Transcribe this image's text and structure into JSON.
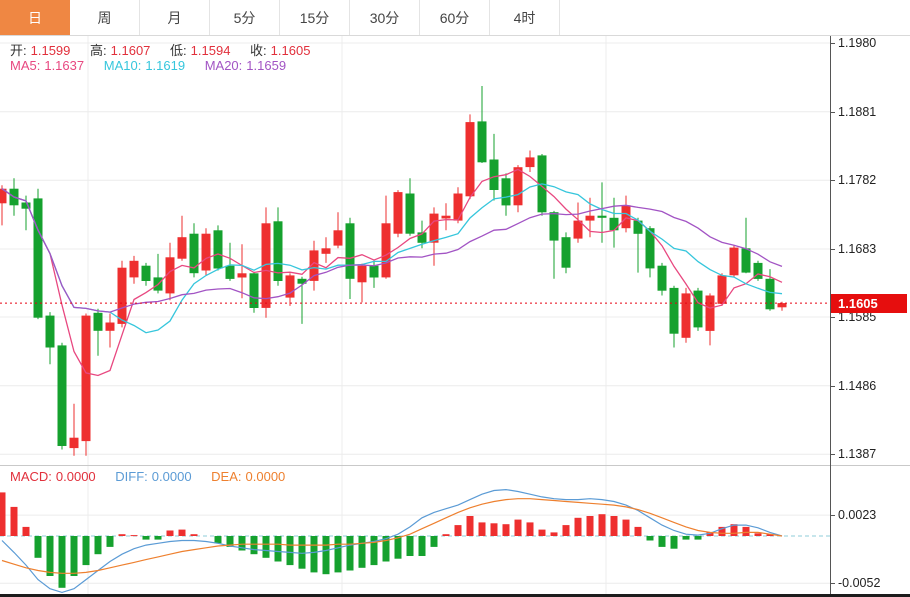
{
  "tabs": {
    "items": [
      {
        "label": "日",
        "name": "day",
        "active": true
      },
      {
        "label": "周",
        "name": "week",
        "active": false
      },
      {
        "label": "月",
        "name": "month",
        "active": false
      },
      {
        "label": "5分",
        "name": "5min",
        "active": false
      },
      {
        "label": "15分",
        "name": "15min",
        "active": false
      },
      {
        "label": "30分",
        "name": "30min",
        "active": false
      },
      {
        "label": "60分",
        "name": "60min",
        "active": false
      },
      {
        "label": "4时",
        "name": "4hour",
        "active": false
      }
    ]
  },
  "ohlc_bar": {
    "open_label": "开:",
    "open": "1.1599",
    "high_label": "高:",
    "high": "1.1607",
    "low_label": "低:",
    "low": "1.1594",
    "close_label": "收:",
    "close": "1.1605"
  },
  "ma_legend": {
    "ma5_label": "MA5:",
    "ma5": "1.1637",
    "ma10_label": "MA10:",
    "ma10": "1.1619",
    "ma20_label": "MA20:",
    "ma20": "1.1659"
  },
  "macd_legend": {
    "macd_label": "MACD:",
    "macd": "0.0000",
    "diff_label": "DIFF:",
    "diff": "0.0000",
    "dea_label": "DEA:",
    "dea": "0.0000"
  },
  "price_axis": {
    "ticks": [
      "1.1980",
      "1.1881",
      "1.1782",
      "1.1683",
      "1.1585",
      "1.1486",
      "1.1387"
    ],
    "last_price": "1.1605"
  },
  "macd_axis": {
    "ticks": [
      "0.0023",
      "-0.0052"
    ]
  },
  "colors": {
    "tab_active_bg": "#ef8743",
    "up": "#ee2f2f",
    "down": "#15a12e",
    "ma5": "#e84880",
    "ma10": "#36c6dc",
    "ma20": "#a254c4",
    "diff": "#5b9bd5",
    "dea": "#ee802f",
    "price_line": "#e60012",
    "badge_bg": "#e60e0e",
    "value_red": "#e1303c",
    "grid": "#ececec",
    "macd_zero_line": "#8fccd8"
  },
  "chart_data": [
    {
      "type": "candlestick",
      "title": "",
      "xlabel": "",
      "ylabel": "",
      "grid": true,
      "legend": [
        "MA5",
        "MA10",
        "MA20"
      ],
      "ylim": [
        1.1372,
        1.199
      ],
      "yticks": [
        1.198,
        1.1881,
        1.1782,
        1.1683,
        1.1585,
        1.1486,
        1.1387
      ],
      "last_price": 1.1605,
      "overlays": [
        {
          "name": "MA5",
          "period": 5,
          "color_key": "ma5",
          "last_value": 1.1637
        },
        {
          "name": "MA10",
          "period": 10,
          "color_key": "ma10",
          "last_value": 1.1619
        },
        {
          "name": "MA20",
          "period": 20,
          "color_key": "ma20",
          "last_value": 1.1659
        }
      ],
      "candles_format": [
        "open",
        "high",
        "low",
        "close"
      ],
      "candles": [
        [
          1.1749,
          1.1775,
          1.1717,
          1.177
        ],
        [
          1.177,
          1.1785,
          1.1731,
          1.1746
        ],
        [
          1.175,
          1.176,
          1.171,
          1.1741
        ],
        [
          1.1756,
          1.177,
          1.1582,
          1.1584
        ],
        [
          1.1587,
          1.1592,
          1.1517,
          1.1541
        ],
        [
          1.1544,
          1.1548,
          1.1394,
          1.1399
        ],
        [
          1.1396,
          1.146,
          1.1385,
          1.1411
        ],
        [
          1.1406,
          1.159,
          1.1385,
          1.1587
        ],
        [
          1.1591,
          1.1597,
          1.1529,
          1.1565
        ],
        [
          1.1565,
          1.159,
          1.1541,
          1.1577
        ],
        [
          1.1575,
          1.1666,
          1.157,
          1.1656
        ],
        [
          1.1642,
          1.1673,
          1.1633,
          1.1666
        ],
        [
          1.1659,
          1.1663,
          1.163,
          1.1637
        ],
        [
          1.1642,
          1.1676,
          1.1619,
          1.1623
        ],
        [
          1.1619,
          1.1692,
          1.1609,
          1.1671
        ],
        [
          1.1669,
          1.1731,
          1.1666,
          1.17
        ],
        [
          1.1705,
          1.172,
          1.1642,
          1.1648
        ],
        [
          1.1652,
          1.1713,
          1.1645,
          1.1705
        ],
        [
          1.171,
          1.1717,
          1.1652,
          1.1655
        ],
        [
          1.1659,
          1.1692,
          1.1637,
          1.164
        ],
        [
          1.1642,
          1.169,
          1.1612,
          1.1648
        ],
        [
          1.1648,
          1.165,
          1.1591,
          1.1598
        ],
        [
          1.1598,
          1.1743,
          1.1584,
          1.172
        ],
        [
          1.1723,
          1.1743,
          1.163,
          1.1637
        ],
        [
          1.1613,
          1.1648,
          1.1601,
          1.1645
        ],
        [
          1.164,
          1.1643,
          1.1575,
          1.1633
        ],
        [
          1.1637,
          1.1695,
          1.1623,
          1.1681
        ],
        [
          1.1676,
          1.17,
          1.1663,
          1.1684
        ],
        [
          1.1688,
          1.1736,
          1.1684,
          1.171
        ],
        [
          1.172,
          1.1728,
          1.1611,
          1.164
        ],
        [
          1.1635,
          1.1662,
          1.1606,
          1.1659
        ],
        [
          1.1659,
          1.1666,
          1.1627,
          1.1642
        ],
        [
          1.1642,
          1.176,
          1.164,
          1.172
        ],
        [
          1.1705,
          1.1768,
          1.17,
          1.1765
        ],
        [
          1.1763,
          1.1785,
          1.1702,
          1.1705
        ],
        [
          1.1707,
          1.1724,
          1.1684,
          1.1692
        ],
        [
          1.1692,
          1.1743,
          1.1659,
          1.1734
        ],
        [
          1.1727,
          1.1749,
          1.171,
          1.1731
        ],
        [
          1.1724,
          1.1772,
          1.172,
          1.1763
        ],
        [
          1.1759,
          1.1877,
          1.1755,
          1.1866
        ],
        [
          1.1867,
          1.1918,
          1.1807,
          1.1808
        ],
        [
          1.1812,
          1.1849,
          1.1753,
          1.1768
        ],
        [
          1.1785,
          1.1792,
          1.1731,
          1.1746
        ],
        [
          1.1746,
          1.1804,
          1.1736,
          1.1801
        ],
        [
          1.1801,
          1.1825,
          1.1794,
          1.1815
        ],
        [
          1.1818,
          1.182,
          1.1731,
          1.1736
        ],
        [
          1.1736,
          1.1738,
          1.164,
          1.1695
        ],
        [
          1.17,
          1.1707,
          1.1648,
          1.1656
        ],
        [
          1.1698,
          1.175,
          1.1692,
          1.1724
        ],
        [
          1.1724,
          1.1757,
          1.17,
          1.1731
        ],
        [
          1.1731,
          1.1779,
          1.1692,
          1.1728
        ],
        [
          1.1728,
          1.1757,
          1.1685,
          1.171
        ],
        [
          1.1713,
          1.176,
          1.1707,
          1.1746
        ],
        [
          1.1724,
          1.1728,
          1.1649,
          1.1705
        ],
        [
          1.1713,
          1.1716,
          1.1642,
          1.1655
        ],
        [
          1.1659,
          1.1663,
          1.1616,
          1.1623
        ],
        [
          1.1627,
          1.163,
          1.1541,
          1.1561
        ],
        [
          1.1555,
          1.1627,
          1.1548,
          1.1619
        ],
        [
          1.1623,
          1.1627,
          1.1565,
          1.157
        ],
        [
          1.1565,
          1.1619,
          1.1544,
          1.1616
        ],
        [
          1.1604,
          1.1648,
          1.1601,
          1.1645
        ],
        [
          1.1645,
          1.1688,
          1.1642,
          1.1685
        ],
        [
          1.1684,
          1.1728,
          1.1648,
          1.1649
        ],
        [
          1.1663,
          1.1666,
          1.1637,
          1.164
        ],
        [
          1.164,
          1.1654,
          1.1594,
          1.1596
        ],
        [
          1.1599,
          1.1607,
          1.1594,
          1.1605
        ]
      ]
    },
    {
      "type": "bar",
      "name": "MACD",
      "grid": true,
      "legend": [
        "MACD",
        "DIFF",
        "DEA"
      ],
      "yticks": [
        0.0023,
        -0.0052
      ],
      "zero_line": 0,
      "hist": [
        0.0048,
        0.0032,
        0.001,
        -0.0024,
        -0.0044,
        -0.0057,
        -0.0044,
        -0.0032,
        -0.002,
        -0.0012,
        0.0002,
        0.0001,
        -0.0004,
        -0.0004,
        0.0006,
        0.0007,
        0.0002,
        0.0,
        -0.0008,
        -0.0012,
        -0.0016,
        -0.002,
        -0.0024,
        -0.0028,
        -0.0032,
        -0.0036,
        -0.004,
        -0.0042,
        -0.004,
        -0.0038,
        -0.0035,
        -0.0032,
        -0.0028,
        -0.0025,
        -0.0022,
        -0.0022,
        -0.0012,
        0.0002,
        0.0012,
        0.0022,
        0.0015,
        0.0014,
        0.0013,
        0.0018,
        0.0015,
        0.0007,
        0.0004,
        0.0012,
        0.002,
        0.0022,
        0.0024,
        0.0022,
        0.0018,
        0.001,
        -0.0005,
        -0.0012,
        -0.0014,
        -0.0004,
        -0.0004,
        0.0004,
        0.001,
        0.0013,
        0.001,
        0.0003,
        0.0002,
        0.0
      ],
      "diff": [
        -0.0005,
        -0.0018,
        -0.0032,
        -0.0048,
        -0.0058,
        -0.0062,
        -0.0058,
        -0.0048,
        -0.0038,
        -0.0028,
        -0.002,
        -0.0014,
        -0.001,
        -0.0008,
        -0.0006,
        -0.0005,
        -0.0005,
        -0.0006,
        -0.0008,
        -0.0011,
        -0.0013,
        -0.0015,
        -0.0016,
        -0.0017,
        -0.0018,
        -0.0019,
        -0.0018,
        -0.0016,
        -0.0013,
        -0.001,
        -0.0008,
        -0.0006,
        -0.0003,
        0.0002,
        0.001,
        0.002,
        0.0026,
        0.003,
        0.0034,
        0.004,
        0.0046,
        0.005,
        0.0051,
        0.0049,
        0.0046,
        0.0043,
        0.0041,
        0.004,
        0.004,
        0.0041,
        0.004,
        0.0038,
        0.0034,
        0.0028,
        0.002,
        0.0012,
        0.0006,
        0.0002,
        0.0001,
        0.0003,
        0.0008,
        0.0012,
        0.0012,
        0.0009,
        0.0004,
        0.0
      ],
      "dea": [
        -0.0027,
        -0.0031,
        -0.0035,
        -0.0038,
        -0.004,
        -0.0041,
        -0.0041,
        -0.004,
        -0.0038,
        -0.0035,
        -0.0032,
        -0.0029,
        -0.0026,
        -0.0023,
        -0.002,
        -0.0017,
        -0.0015,
        -0.0013,
        -0.0011,
        -0.001,
        -0.0009,
        -0.0009,
        -0.0009,
        -0.0009,
        -0.001,
        -0.001,
        -0.001,
        -0.001,
        -0.0009,
        -0.0009,
        -0.0008,
        -0.0007,
        -0.0005,
        -0.0002,
        0.0002,
        0.0008,
        0.0014,
        0.002,
        0.0026,
        0.0031,
        0.0035,
        0.0038,
        0.004,
        0.0041,
        0.0041,
        0.004,
        0.0039,
        0.0038,
        0.0037,
        0.0036,
        0.0035,
        0.0034,
        0.0032,
        0.0029,
        0.0025,
        0.002,
        0.0015,
        0.001,
        0.0006,
        0.0004,
        0.0003,
        0.0003,
        0.0004,
        0.0004,
        0.0002,
        0.0
      ]
    }
  ]
}
